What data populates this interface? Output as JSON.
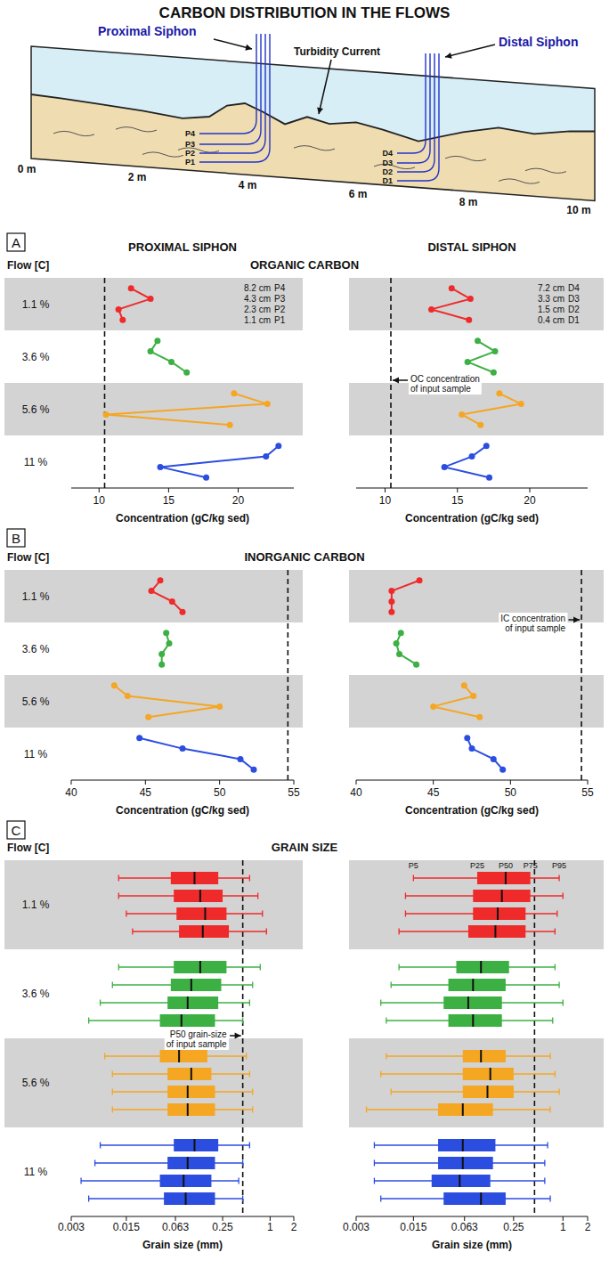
{
  "title": "CARBON DISTRIBUTION IN THE FLOWS",
  "diagram": {
    "proximal_siphon": "Proximal Siphon",
    "distal_siphon": "Distal Siphon",
    "current": "Turbidity Current",
    "distances": [
      "0 m",
      "2 m",
      "4 m",
      "6 m",
      "8 m",
      "10 m"
    ],
    "proximal_ports": [
      "P4",
      "P3",
      "P2",
      "P1"
    ],
    "distal_ports": [
      "D4",
      "D3",
      "D2",
      "D1"
    ]
  },
  "panels": [
    {
      "letter": "A",
      "title": "ORGANIC CARBON",
      "flow_label": "Flow [C]",
      "flows": [
        "1.1 %",
        "3.6 %",
        "5.6 %",
        "11 %"
      ]
    },
    {
      "letter": "B",
      "title": "INORGANIC CARBON",
      "flow_label": "Flow [C]",
      "flows": [
        "1.1 %",
        "3.6 %",
        "5.6 %",
        "11 %"
      ]
    },
    {
      "letter": "C",
      "title": "GRAIN SIZE",
      "flow_label": "Flow [C]",
      "flows": [
        "1.1 %",
        "3.6 %",
        "5.6 %",
        "11 %"
      ]
    }
  ],
  "chart_data": [
    {
      "type": "line",
      "title": "PROXIMAL SIPHON",
      "x_label": "Concentration (gC/kg sed)",
      "xlim": [
        8,
        24
      ],
      "xticks": [
        10,
        15,
        20
      ],
      "marker": "circle",
      "reference": {
        "value": 10.4
      },
      "ports": [
        {
          "depth": "8.2 cm",
          "label": "P4"
        },
        {
          "depth": "4.3 cm",
          "label": "P3"
        },
        {
          "depth": "2.3 cm",
          "label": "P2"
        },
        {
          "depth": "1.1 cm",
          "label": "P1"
        }
      ],
      "series": [
        {
          "color": "#ee2a2a",
          "values": [
            12.3,
            13.7,
            11.4,
            11.7
          ]
        },
        {
          "color": "#3cb043",
          "values": [
            14.2,
            13.7,
            15.2,
            16.3
          ]
        },
        {
          "color": "#f5a623",
          "values": [
            19.7,
            22.1,
            10.5,
            19.4
          ]
        },
        {
          "color": "#2b4de0",
          "values": [
            22.9,
            22.0,
            14.4,
            17.7
          ]
        }
      ]
    },
    {
      "type": "line",
      "title": "DISTAL SIPHON",
      "x_label": "Concentration (gC/kg sed)",
      "xlim": [
        8,
        24
      ],
      "xticks": [
        10,
        15,
        20
      ],
      "marker": "circle",
      "reference": {
        "value": 10.4,
        "label": "OC concentration of input sample"
      },
      "ports": [
        {
          "depth": "7.2 cm",
          "label": "D4"
        },
        {
          "depth": "3.3 cm",
          "label": "D3"
        },
        {
          "depth": "1.5 cm",
          "label": "D2"
        },
        {
          "depth": "0.4 cm",
          "label": "D1"
        }
      ],
      "series": [
        {
          "color": "#ee2a2a",
          "values": [
            14.6,
            15.9,
            13.2,
            15.8
          ]
        },
        {
          "color": "#3cb043",
          "values": [
            16.4,
            17.6,
            15.7,
            17.5
          ]
        },
        {
          "color": "#f5a623",
          "values": [
            17.9,
            19.4,
            15.3,
            16.6
          ]
        },
        {
          "color": "#2b4de0",
          "values": [
            17.0,
            16.0,
            14.1,
            17.2
          ]
        }
      ]
    },
    {
      "type": "line",
      "x_label": "Concentration (gC/kg sed)",
      "xlim": [
        40,
        55
      ],
      "xticks": [
        40,
        45,
        50,
        55
      ],
      "marker": "circle",
      "reference": {
        "value": 54.6
      },
      "series": [
        {
          "color": "#ee2a2a",
          "values": [
            46.0,
            45.4,
            46.8,
            47.5
          ]
        },
        {
          "color": "#3cb043",
          "values": [
            46.4,
            46.6,
            46.1,
            46.1
          ]
        },
        {
          "color": "#f5a623",
          "values": [
            42.9,
            43.8,
            50.0,
            45.2
          ]
        },
        {
          "color": "#2b4de0",
          "values": [
            44.6,
            47.5,
            51.4,
            52.3
          ]
        }
      ]
    },
    {
      "type": "line",
      "x_label": "Concentration (gC/kg sed)",
      "xlim": [
        40,
        55
      ],
      "xticks": [
        40,
        45,
        50,
        55
      ],
      "marker": "circle",
      "reference": {
        "value": 54.6,
        "label": "IC concentration of input sample"
      },
      "series": [
        {
          "color": "#ee2a2a",
          "values": [
            44.1,
            42.3,
            42.3,
            42.3
          ]
        },
        {
          "color": "#3cb043",
          "values": [
            42.9,
            42.6,
            42.8,
            43.9
          ]
        },
        {
          "color": "#f5a623",
          "values": [
            47.0,
            47.6,
            45.0,
            48.0
          ]
        },
        {
          "color": "#2b4de0",
          "values": [
            47.2,
            47.5,
            48.9,
            49.5
          ]
        }
      ]
    },
    {
      "type": "box",
      "log": "x",
      "x_label": "Grain size (mm)",
      "xlim": [
        0.003,
        2
      ],
      "xticks": [
        0.003,
        0.015,
        0.063,
        0.25,
        1,
        2
      ],
      "reference": {
        "value": 0.45,
        "label": "P50 grain-size of input sample"
      },
      "series": [
        {
          "color": "#ee2a2a",
          "values": [
            [
              0.012,
              0.055,
              0.11,
              0.22,
              0.55
            ],
            [
              0.012,
              0.06,
              0.13,
              0.25,
              0.7
            ],
            [
              0.015,
              0.065,
              0.15,
              0.28,
              0.8
            ],
            [
              0.018,
              0.07,
              0.14,
              0.3,
              0.9
            ]
          ]
        },
        {
          "color": "#3cb043",
          "values": [
            [
              0.012,
              0.06,
              0.13,
              0.28,
              0.75
            ],
            [
              0.01,
              0.055,
              0.1,
              0.24,
              0.6
            ],
            [
              0.007,
              0.05,
              0.09,
              0.22,
              0.55
            ],
            [
              0.005,
              0.04,
              0.075,
              0.2,
              0.45
            ]
          ]
        },
        {
          "color": "#f5a623",
          "values": [
            [
              0.008,
              0.04,
              0.07,
              0.16,
              0.5
            ],
            [
              0.01,
              0.05,
              0.1,
              0.18,
              0.55
            ],
            [
              0.01,
              0.05,
              0.09,
              0.2,
              0.6
            ],
            [
              0.01,
              0.05,
              0.09,
              0.2,
              0.6
            ]
          ]
        },
        {
          "color": "#2b4de0",
          "values": [
            [
              0.007,
              0.06,
              0.11,
              0.22,
              0.55
            ],
            [
              0.006,
              0.05,
              0.09,
              0.2,
              0.45
            ],
            [
              0.004,
              0.04,
              0.08,
              0.18,
              0.4
            ],
            [
              0.005,
              0.045,
              0.085,
              0.2,
              0.45
            ]
          ]
        }
      ]
    },
    {
      "type": "box",
      "log": "x",
      "x_label": "Grain size (mm)",
      "xlim": [
        0.003,
        2
      ],
      "xticks": [
        0.003,
        0.015,
        0.063,
        0.25,
        1,
        2
      ],
      "reference": {
        "value": 0.45
      },
      "percentile_labels": [
        "P5",
        "P25",
        "P50",
        "P75",
        "P95"
      ],
      "series": [
        {
          "color": "#ee2a2a",
          "values": [
            [
              0.015,
              0.09,
              0.2,
              0.4,
              0.9
            ],
            [
              0.012,
              0.08,
              0.18,
              0.4,
              1.0
            ],
            [
              0.012,
              0.08,
              0.16,
              0.35,
              0.85
            ],
            [
              0.01,
              0.07,
              0.15,
              0.35,
              0.8
            ]
          ]
        },
        {
          "color": "#3cb043",
          "values": [
            [
              0.01,
              0.05,
              0.1,
              0.22,
              0.8
            ],
            [
              0.008,
              0.04,
              0.08,
              0.2,
              0.9
            ],
            [
              0.006,
              0.035,
              0.07,
              0.18,
              1.0
            ],
            [
              0.007,
              0.04,
              0.08,
              0.18,
              0.75
            ]
          ]
        },
        {
          "color": "#f5a623",
          "values": [
            [
              0.007,
              0.06,
              0.1,
              0.2,
              0.7
            ],
            [
              0.006,
              0.06,
              0.13,
              0.25,
              0.8
            ],
            [
              0.008,
              0.06,
              0.12,
              0.25,
              0.9
            ],
            [
              0.004,
              0.03,
              0.06,
              0.14,
              0.7
            ]
          ]
        },
        {
          "color": "#2b4de0",
          "values": [
            [
              0.005,
              0.03,
              0.06,
              0.15,
              0.65
            ],
            [
              0.005,
              0.03,
              0.06,
              0.14,
              0.6
            ],
            [
              0.005,
              0.025,
              0.055,
              0.13,
              0.6
            ],
            [
              0.006,
              0.035,
              0.1,
              0.2,
              0.7
            ]
          ]
        }
      ]
    }
  ]
}
